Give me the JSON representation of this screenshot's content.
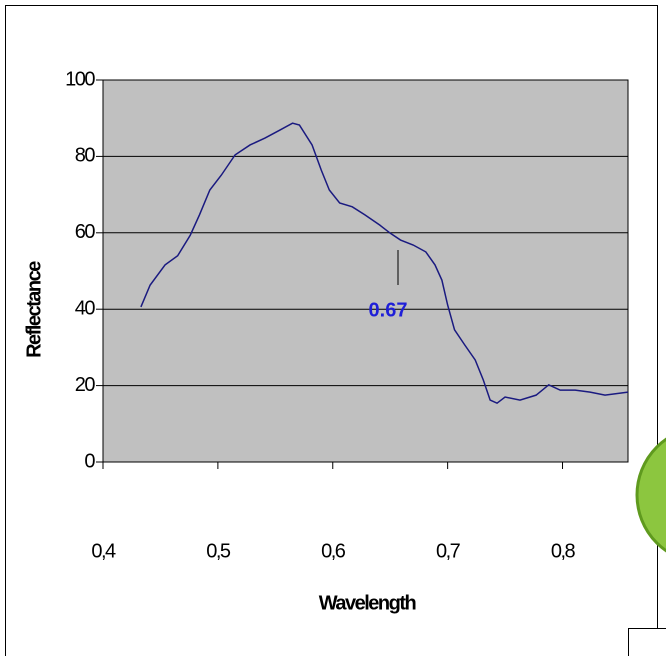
{
  "chart_data": {
    "type": "line",
    "xlabel": "Wavelength",
    "ylabel": "Reflectance",
    "annotation": "0.67",
    "x": [
      0.433,
      0.441,
      0.454,
      0.465,
      0.476,
      0.484,
      0.493,
      0.503,
      0.515,
      0.528,
      0.541,
      0.554,
      0.565,
      0.571,
      0.582,
      0.59,
      0.597,
      0.606,
      0.617,
      0.628,
      0.641,
      0.65,
      0.659,
      0.67,
      0.681,
      0.689,
      0.695,
      0.7,
      0.706,
      0.715,
      0.724,
      0.731,
      0.737,
      0.743,
      0.75,
      0.763,
      0.777,
      0.788,
      0.798,
      0.811,
      0.824,
      0.837,
      0.857
    ],
    "values": [
      40.6,
      46.3,
      51.6,
      54,
      59.4,
      64.7,
      71.2,
      75.1,
      80.4,
      83,
      84.8,
      86.9,
      88.7,
      88.2,
      83,
      76.4,
      71.2,
      67.8,
      66.8,
      64.7,
      62,
      59.9,
      58.1,
      56.8,
      55,
      51.6,
      47.6,
      41.1,
      34.6,
      30.6,
      26.7,
      21.5,
      16.2,
      15.4,
      17,
      16.2,
      17.5,
      20.2,
      18.8,
      18.8,
      18.3,
      17.5,
      18.3
    ],
    "color": "#1a1a80",
    "xlim": [
      0.4,
      0.857
    ],
    "xticks": [
      {
        "value": 0.4,
        "label": "0,4"
      },
      {
        "value": 0.5,
        "label": "0,5"
      },
      {
        "value": 0.6,
        "label": "0,6"
      },
      {
        "value": 0.7,
        "label": "0,7"
      },
      {
        "value": 0.8,
        "label": "0,8"
      }
    ],
    "ylim": [
      0,
      100
    ],
    "yticks": [
      0,
      20,
      40,
      60,
      80,
      100
    ],
    "grid": true
  }
}
